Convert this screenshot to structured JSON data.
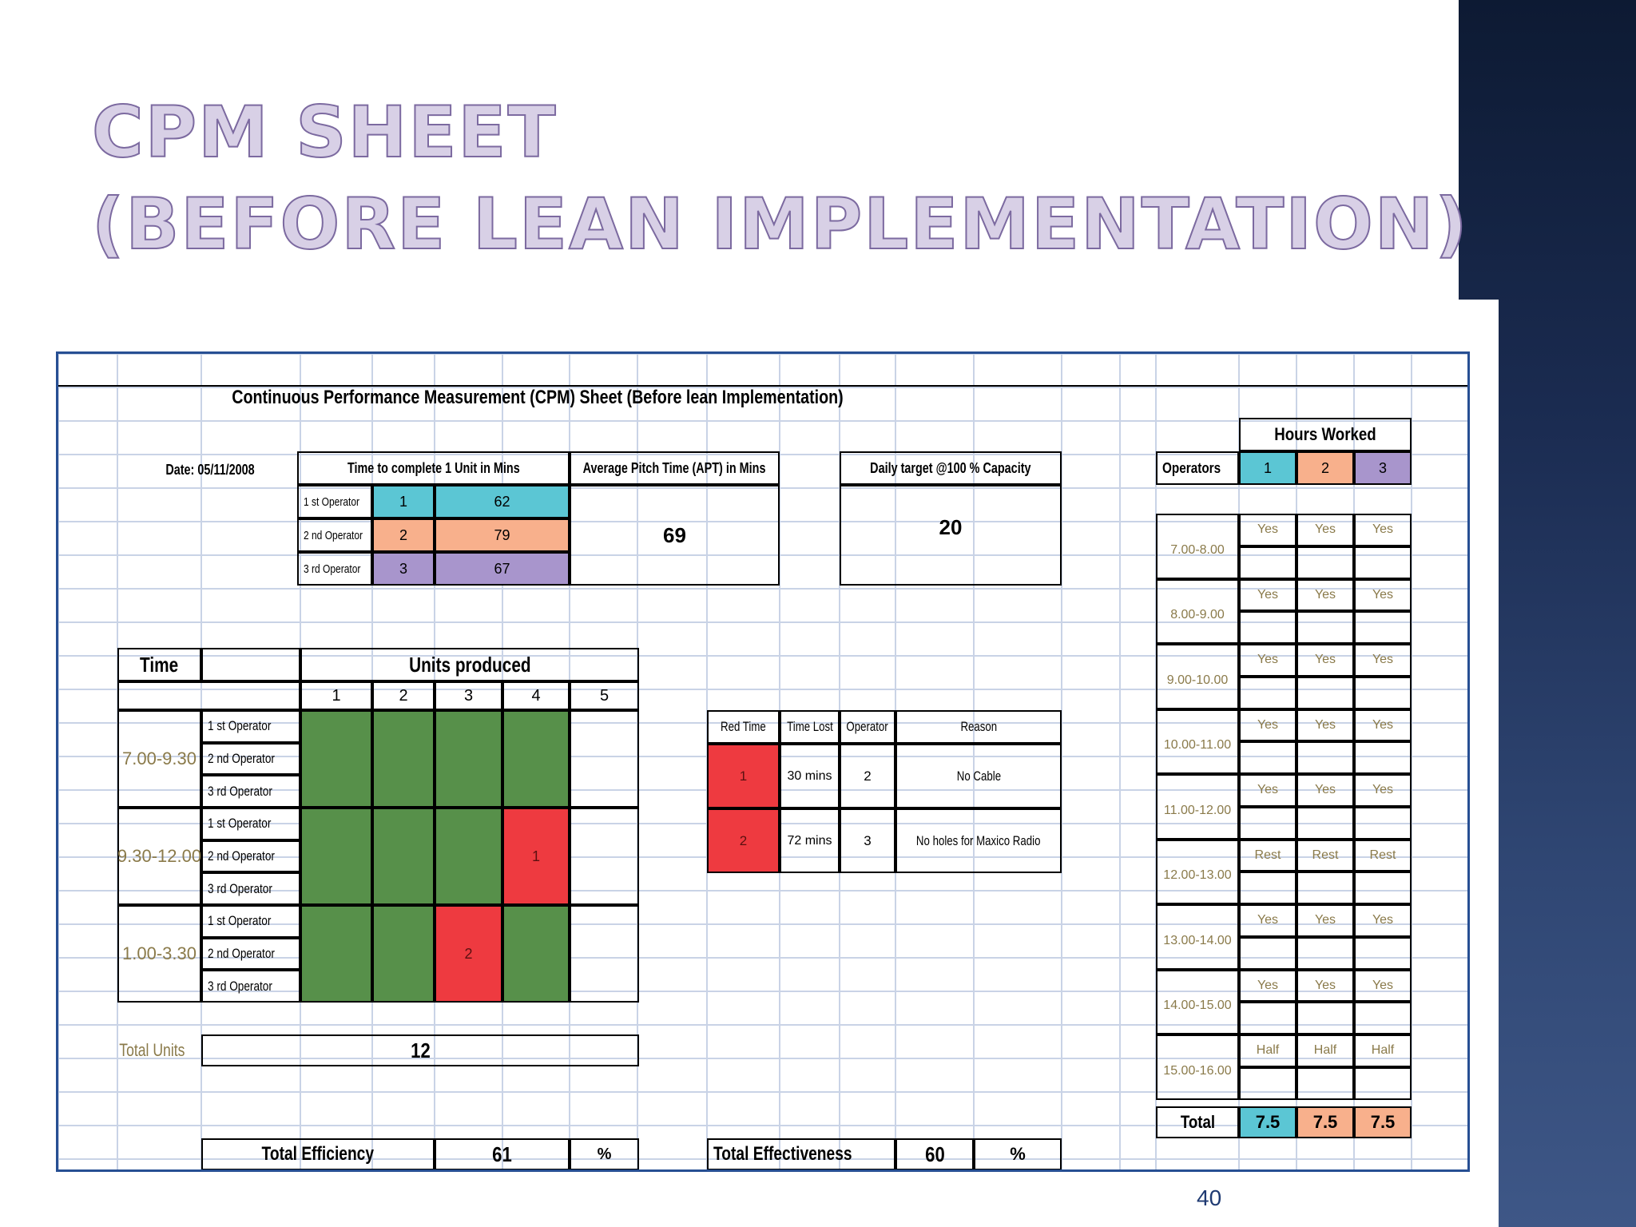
{
  "slide": {
    "title_line1": "CPM Sheet",
    "title_line2": "(Before Lean Implementation)",
    "page_number": "40"
  },
  "sheet": {
    "title": "Continuous Performance Measurement (CPM) Sheet (Before lean Implementation)",
    "date": "Date: 05/11/2008",
    "time_to_complete": {
      "header": "Time to complete 1 Unit in Mins",
      "rows": [
        {
          "label": "1 st Operator",
          "number": "1",
          "minutes": "62"
        },
        {
          "label": "2 nd Operator",
          "number": "2",
          "minutes": "79"
        },
        {
          "label": "3 rd Operator",
          "number": "3",
          "minutes": "67"
        }
      ]
    },
    "apt": {
      "header": "Average Pitch Time (APT) in Mins",
      "value": "69"
    },
    "daily_target": {
      "header": "Daily target @100 % Capacity",
      "value": "20"
    },
    "hours_worked": {
      "header": "Hours Worked",
      "operators_label": "Operators",
      "operators": [
        "1",
        "2",
        "3"
      ],
      "slots": [
        {
          "time": "7.00-8.00",
          "values": [
            "Yes",
            "Yes",
            "Yes"
          ]
        },
        {
          "time": "8.00-9.00",
          "values": [
            "Yes",
            "Yes",
            "Yes"
          ]
        },
        {
          "time": "9.00-10.00",
          "values": [
            "Yes",
            "Yes",
            "Yes"
          ]
        },
        {
          "time": "10.00-11.00",
          "values": [
            "Yes",
            "Yes",
            "Yes"
          ]
        },
        {
          "time": "11.00-12.00",
          "values": [
            "Yes",
            "Yes",
            "Yes"
          ]
        },
        {
          "time": "12.00-13.00",
          "values": [
            "Rest",
            "Rest",
            "Rest"
          ]
        },
        {
          "time": "13.00-14.00",
          "values": [
            "Yes",
            "Yes",
            "Yes"
          ]
        },
        {
          "time": "14.00-15.00",
          "values": [
            "Yes",
            "Yes",
            "Yes"
          ]
        },
        {
          "time": "15.00-16.00",
          "values": [
            "Half",
            "Half",
            "Half"
          ]
        }
      ],
      "total_label": "Total",
      "totals": [
        "7.5",
        "7.5",
        "7.5"
      ]
    },
    "units_produced": {
      "time_header": "Time",
      "header": "Units produced",
      "columns": [
        "1",
        "2",
        "3",
        "4",
        "5"
      ],
      "operator_labels": [
        "1 st Operator",
        "2 nd Operator",
        "3 rd Operator"
      ],
      "periods": [
        {
          "time": "7.00-9.30",
          "cells": [
            {
              "status": "green",
              "label": ""
            },
            {
              "status": "green",
              "label": ""
            },
            {
              "status": "green",
              "label": ""
            },
            {
              "status": "green",
              "label": ""
            },
            {
              "status": "empty",
              "label": ""
            }
          ]
        },
        {
          "time": "9.30-12.00",
          "cells": [
            {
              "status": "green",
              "label": ""
            },
            {
              "status": "green",
              "label": ""
            },
            {
              "status": "green",
              "label": ""
            },
            {
              "status": "red",
              "label": "1"
            },
            {
              "status": "empty",
              "label": ""
            }
          ]
        },
        {
          "time": "1.00-3.30",
          "cells": [
            {
              "status": "green",
              "label": ""
            },
            {
              "status": "green",
              "label": ""
            },
            {
              "status": "red",
              "label": "2"
            },
            {
              "status": "green",
              "label": ""
            },
            {
              "status": "empty",
              "label": ""
            }
          ]
        }
      ],
      "total_units_label": "Total Units",
      "total_units_value": "12"
    },
    "red_time": {
      "headers": [
        "Red Time",
        "Time Lost",
        "Operator",
        "Reason"
      ],
      "rows": [
        {
          "id": "1",
          "time_lost": "30 mins",
          "operator": "2",
          "reason": "No Cable"
        },
        {
          "id": "2",
          "time_lost": "72 mins",
          "operator": "3",
          "reason": "No holes for Maxico Radio"
        }
      ]
    },
    "total_efficiency": {
      "label": "Total Efficiency",
      "value": "61",
      "unit": "%"
    },
    "total_effectiveness": {
      "label": "Total Effectiveness",
      "value": "60",
      "unit": "%"
    }
  },
  "colors": {
    "green": "#57904a",
    "red": "#ee3a40",
    "teal": "#5bc6d4",
    "orange": "#f8b08c",
    "purple": "#a895cc",
    "sheet_border": "#274f93",
    "grid": "#c9d3e6",
    "title_fill": "#d8d0e6"
  }
}
